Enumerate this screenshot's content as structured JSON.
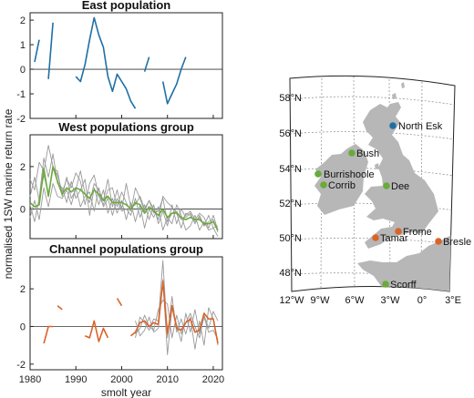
{
  "chart_data": [
    {
      "type": "line",
      "title": "East population",
      "ylim": [
        -2,
        2.3
      ],
      "yticks": [
        -2,
        -1,
        0,
        1,
        2
      ],
      "xlim": [
        1980,
        2022
      ],
      "colors": {
        "main": "#1f6fa6"
      },
      "series": [
        {
          "segments": [
            [
              [
                1981,
                0.3
              ],
              [
                1982,
                1.2
              ]
            ],
            [
              [
                1984,
                -0.4
              ],
              [
                1985,
                1.9
              ]
            ],
            [
              [
                1990,
                -0.3
              ],
              [
                1991,
                -0.5
              ],
              [
                1992,
                0.2
              ],
              [
                1993,
                1.2
              ],
              [
                1994,
                2.1
              ],
              [
                1995,
                1.4
              ],
              [
                1996,
                0.9
              ],
              [
                1997,
                -0.3
              ],
              [
                1998,
                -0.9
              ],
              [
                1999,
                -0.2
              ],
              [
                2000,
                -0.5
              ],
              [
                2001,
                -0.8
              ],
              [
                2002,
                -1.3
              ],
              [
                2003,
                -1.6
              ]
            ],
            [
              [
                2005,
                -0.1
              ],
              [
                2006,
                0.5
              ]
            ],
            [
              [
                2009,
                -0.5
              ],
              [
                2010,
                -1.4
              ],
              [
                2011,
                -1.0
              ],
              [
                2012,
                -0.6
              ],
              [
                2013,
                0.0
              ],
              [
                2014,
                0.5
              ]
            ]
          ]
        }
      ]
    },
    {
      "type": "line",
      "title": "West populations group",
      "ylim": [
        -1.4,
        3.5
      ],
      "yticks": [
        -2,
        0,
        2
      ],
      "xlim": [
        1980,
        2022
      ],
      "colors": {
        "main": "#6aaa3a",
        "grey": "#999999"
      },
      "series": [
        {
          "role": "grey",
          "x": [
            1980,
            1981,
            1982,
            1983,
            1984,
            1985,
            1986,
            1987,
            1988,
            1989,
            1990,
            1991,
            1992,
            1993,
            1994,
            1995,
            1996,
            1997,
            1998,
            1999,
            2000,
            2001,
            2002,
            2003,
            2004,
            2005,
            2006,
            2007,
            2008,
            2009,
            2010,
            2011,
            2012,
            2013,
            2014,
            2015,
            2016,
            2017,
            2018,
            2019,
            2020,
            2021
          ],
          "values": [
            1.4,
            0.9,
            2.2,
            1.8,
            3.0,
            2.0,
            1.6,
            0.8,
            1.4,
            1.0,
            1.7,
            1.3,
            0.2,
            1.2,
            1.6,
            0.6,
            0.2,
            0.9,
            1.0,
            0.1,
            0.8,
            0.3,
            -0.1,
            1.0,
            0.5,
            -0.1,
            0.4,
            0.0,
            -0.5,
            0.6,
            0.3,
            0.1,
            -0.2,
            -0.9,
            -0.2,
            -0.3,
            -0.6,
            -0.4,
            -0.8,
            -0.6,
            -0.5,
            -1.1
          ]
        },
        {
          "role": "grey",
          "x": [
            1980,
            1981,
            1982,
            1983,
            1984,
            1985,
            1986,
            1987,
            1988,
            1989,
            1990,
            1991,
            1992,
            1993,
            1994,
            1995,
            1996,
            1997,
            1998,
            1999,
            2000,
            2001,
            2002,
            2003,
            2004,
            2005,
            2006,
            2007,
            2008,
            2009,
            2010,
            2011,
            2012,
            2013,
            2014,
            2015,
            2016,
            2017,
            2018,
            2019,
            2020,
            2021
          ],
          "values": [
            0.2,
            -0.6,
            0.5,
            2.4,
            1.5,
            2.6,
            1.2,
            1.0,
            0.3,
            1.3,
            0.5,
            0.9,
            1.4,
            -0.3,
            1.0,
            0.2,
            0.9,
            -0.2,
            0.5,
            -0.2,
            0.4,
            -0.5,
            0.3,
            -0.6,
            0.2,
            -0.9,
            0.0,
            -0.4,
            0.1,
            -1.0,
            -0.4,
            -0.7,
            0.2,
            -0.3,
            -1.0,
            -0.8,
            -0.3,
            -1.0,
            -0.6,
            -1.0,
            -0.9,
            -1.3
          ]
        },
        {
          "role": "grey",
          "x": [
            1980,
            1981,
            1982,
            1983,
            1984,
            1985,
            1986,
            1987,
            1988,
            1989,
            1990,
            1991,
            1992,
            1993,
            1994,
            1995,
            1996,
            1997,
            1998,
            1999,
            2000,
            2001,
            2002,
            2003,
            2004,
            2005,
            2006,
            2007,
            2008,
            2009,
            2010,
            2011,
            2012,
            2013,
            2014,
            2015,
            2016,
            2017,
            2018,
            2019,
            2020,
            2021
          ],
          "values": [
            -0.4,
            0.4,
            -0.5,
            1.0,
            0.1,
            1.2,
            0.6,
            0.5,
            0.9,
            0.2,
            1.0,
            0.1,
            0.6,
            0.8,
            -0.1,
            1.0,
            0.1,
            0.5,
            -0.3,
            0.5,
            -0.1,
            0.0,
            -0.3,
            0.5,
            -0.4,
            0.2,
            -0.5,
            0.2,
            -0.7,
            -0.1,
            -0.8,
            0.2,
            -0.7,
            0.0,
            -0.4,
            -0.2,
            -0.7,
            -0.3,
            -0.8,
            -0.3,
            -0.9,
            -0.8
          ]
        },
        {
          "role": "grey",
          "x": [
            1980,
            1981,
            1982,
            1983,
            1984,
            1985,
            1986,
            1987,
            1988,
            1989,
            1990,
            1991,
            1992,
            1993,
            1994,
            1995,
            1996,
            1997,
            1998,
            1999,
            2000,
            2001,
            2002,
            2003,
            2004,
            2005,
            2006,
            2007,
            2008,
            2009,
            2010,
            2011,
            2012,
            2013,
            2014,
            2015,
            2016,
            2017,
            2018,
            2019,
            2020,
            2021
          ],
          "values": [
            0.6,
            1.5,
            0.4,
            1.6,
            0.7,
            1.9,
            1.8,
            0.6,
            1.5,
            0.5,
            0.9,
            1.8,
            0.7,
            0.3,
            1.2,
            0.9,
            0.4,
            1.4,
            0.1,
            0.9,
            0.0,
            1.2,
            0.1,
            0.2,
            0.6,
            0.0,
            0.4,
            -0.2,
            -0.1,
            0.5,
            -0.6,
            -0.2,
            -0.1,
            -0.5,
            -0.3,
            -0.1,
            -0.5,
            -0.2,
            -0.4,
            -0.9,
            -0.3,
            -1.0
          ]
        },
        {
          "role": "main",
          "x": [
            1980,
            1981,
            1982,
            1983,
            1984,
            1985,
            1986,
            1987,
            1988,
            1989,
            1990,
            1991,
            1992,
            1993,
            1994,
            1995,
            1996,
            1997,
            1998,
            1999,
            2000,
            2001,
            2002,
            2003,
            2004,
            2005,
            2006,
            2007,
            2008,
            2009,
            2010,
            2011,
            2012,
            2013,
            2014,
            2015,
            2016,
            2017,
            2018,
            2019,
            2020,
            2021
          ],
          "values": [
            0.3,
            0.1,
            0.2,
            1.9,
            0.6,
            2.0,
            1.3,
            0.7,
            1.0,
            0.8,
            1.0,
            0.9,
            0.7,
            0.5,
            0.9,
            0.7,
            0.4,
            0.6,
            0.3,
            0.3,
            0.3,
            0.2,
            0.0,
            0.3,
            0.2,
            -0.2,
            0.1,
            -0.1,
            -0.3,
            0.0,
            -0.4,
            -0.2,
            -0.2,
            -0.4,
            -0.5,
            -0.4,
            -0.5,
            -0.5,
            -0.7,
            -0.7,
            -0.6,
            -1.0
          ]
        }
      ]
    },
    {
      "type": "line",
      "title": "Channel populations group",
      "xlabel": "smolt year",
      "ylim": [
        -2.3,
        3.7
      ],
      "yticks": [
        -2,
        0,
        2
      ],
      "xlim": [
        1980,
        2022
      ],
      "xticks": [
        1980,
        1990,
        2000,
        2010,
        2020
      ],
      "colors": {
        "main": "#d9642a",
        "grey": "#999999"
      },
      "series": [
        {
          "role": "grey",
          "x": [
            2003,
            2004,
            2005,
            2006,
            2007,
            2008,
            2009,
            2010,
            2011,
            2012,
            2013,
            2014,
            2015,
            2016,
            2017,
            2018,
            2019,
            2020,
            2021
          ],
          "values": [
            -0.6,
            0.5,
            0.2,
            -0.2,
            0.4,
            0.3,
            3.5,
            -0.6,
            1.6,
            -0.3,
            0.4,
            -0.4,
            0.5,
            -1.2,
            0.3,
            -1.0,
            1.0,
            0.4,
            -1.0
          ]
        },
        {
          "role": "grey",
          "x": [
            2003,
            2004,
            2005,
            2006,
            2007,
            2008,
            2009,
            2010,
            2011,
            2012,
            2013,
            2014,
            2015,
            2016,
            2017,
            2018,
            2019,
            2020,
            2021
          ],
          "values": [
            -0.4,
            -0.1,
            0.6,
            0.0,
            -0.2,
            0.9,
            1.4,
            1.2,
            -0.6,
            0.6,
            -0.4,
            0.2,
            0.7,
            0.0,
            -0.6,
            0.6,
            -0.1,
            0.8,
            0.3
          ]
        },
        {
          "role": "grey",
          "x": [
            2003,
            2004,
            2005,
            2006,
            2007,
            2008,
            2009,
            2010,
            2011,
            2012,
            2013,
            2014,
            2015,
            2016,
            2017,
            2018,
            2019,
            2020,
            2021
          ],
          "values": [
            0.3,
            -0.5,
            -0.2,
            0.5,
            -0.3,
            -0.1,
            2.5,
            -1.5,
            1.0,
            0.1,
            -0.8,
            0.7,
            -0.3,
            0.9,
            -0.4,
            0.5,
            -0.3,
            -0.2,
            -0.7
          ]
        },
        {
          "role": "main",
          "segments": [
            [
              [
                1983,
                -0.9
              ],
              [
                1984,
                0.0
              ],
              [
                1985,
                0.0
              ]
            ],
            [
              [
                1986,
                1.1
              ],
              [
                1987,
                0.9
              ]
            ],
            [
              [
                1992,
                -0.5
              ],
              [
                1993,
                -0.6
              ],
              [
                1994,
                0.3
              ],
              [
                1995,
                -0.8
              ],
              [
                1996,
                -0.1
              ],
              [
                1997,
                -0.6
              ]
            ],
            [
              [
                1999,
                1.5
              ],
              [
                2000,
                1.1
              ]
            ],
            [
              [
                2002,
                -0.5
              ],
              [
                2003,
                -0.3
              ],
              [
                2004,
                0.2
              ],
              [
                2005,
                0.3
              ],
              [
                2006,
                0.0
              ],
              [
                2007,
                0.2
              ],
              [
                2008,
                0.1
              ],
              [
                2009,
                2.4
              ],
              [
                2010,
                -0.4
              ],
              [
                2011,
                1.1
              ],
              [
                2012,
                -0.1
              ],
              [
                2013,
                -0.2
              ],
              [
                2014,
                0.2
              ],
              [
                2015,
                0.4
              ],
              [
                2016,
                -0.3
              ],
              [
                2017,
                -0.2
              ],
              [
                2018,
                0.7
              ],
              [
                2019,
                0.4
              ],
              [
                2020,
                0.4
              ],
              [
                2021,
                -0.9
              ]
            ]
          ]
        }
      ]
    }
  ],
  "shared_ylabel": "normalised 1SW marine return rate",
  "map": {
    "lat_labels": [
      "58°N",
      "56°N",
      "54°N",
      "52°N",
      "50°N",
      "48°N"
    ],
    "lon_labels": [
      "12°W",
      "9°W",
      "6°W",
      "3°W",
      "0°",
      "3°E"
    ],
    "colors": {
      "land": "#b7b7b7",
      "east": "#1f6fa6",
      "west": "#6aaa3a",
      "channel": "#d9642a"
    },
    "sites": [
      {
        "name": "North Esk",
        "group": "east"
      },
      {
        "name": "Bush",
        "group": "west"
      },
      {
        "name": "Burrishoole",
        "group": "west"
      },
      {
        "name": "Corrib",
        "group": "west"
      },
      {
        "name": "Dee",
        "group": "west"
      },
      {
        "name": "Frome",
        "group": "channel"
      },
      {
        "name": "Tamar",
        "group": "channel"
      },
      {
        "name": "Bresle",
        "group": "channel"
      },
      {
        "name": "Scorff",
        "group": "west"
      }
    ]
  }
}
